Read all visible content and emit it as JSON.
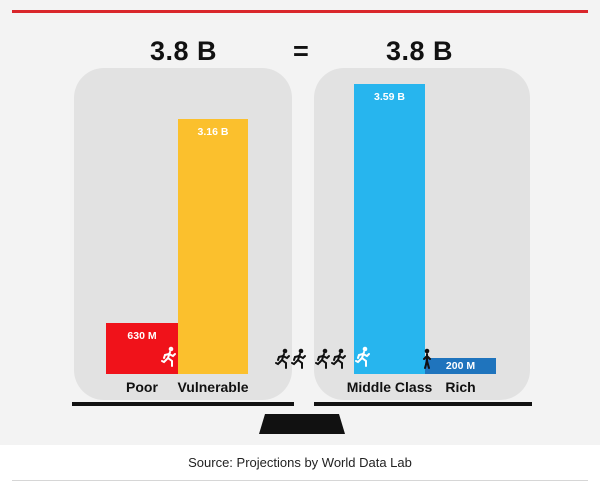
{
  "totals": {
    "left": "3.8 B",
    "equals": "=",
    "right": "3.8 B"
  },
  "source": "Source: Projections by World Data Lab",
  "colors": {
    "poor": "#f0121a",
    "vulnerable": "#fbc02d",
    "middle": "#27b5ee",
    "rich": "#1f74bd",
    "accent_rule": "#d9262b"
  },
  "icons": [
    "running-person-icon",
    "walking-person-icon"
  ],
  "chart_data": {
    "type": "bar",
    "title": "",
    "unit": "people",
    "ylim": [
      0,
      3590000000
    ],
    "groups": [
      {
        "total_label": "3.8 B",
        "bars": [
          {
            "category": "Poor",
            "value": 630000000,
            "label": "630 M",
            "color": "#f0121a"
          },
          {
            "category": "Vulnerable",
            "value": 3160000000,
            "label": "3.16 B",
            "color": "#fbc02d"
          }
        ]
      },
      {
        "total_label": "3.8 B",
        "bars": [
          {
            "category": "Middle Class",
            "value": 3590000000,
            "label": "3.59 B",
            "color": "#27b5ee"
          },
          {
            "category": "Rich",
            "value": 200000000,
            "label": "200 M",
            "color": "#1f74bd"
          }
        ]
      }
    ]
  }
}
